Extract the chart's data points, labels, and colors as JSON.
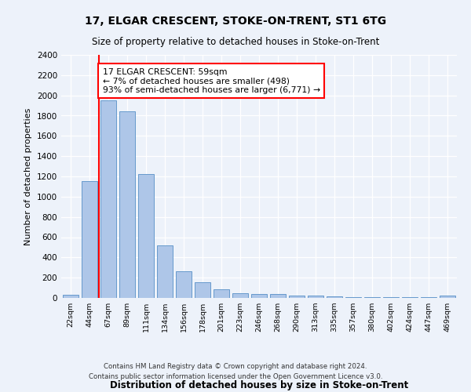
{
  "title1": "17, ELGAR CRESCENT, STOKE-ON-TRENT, ST1 6TG",
  "title2": "Size of property relative to detached houses in Stoke-on-Trent",
  "xlabel": "Distribution of detached houses by size in Stoke-on-Trent",
  "ylabel": "Number of detached properties",
  "categories": [
    "22sqm",
    "44sqm",
    "67sqm",
    "89sqm",
    "111sqm",
    "134sqm",
    "156sqm",
    "178sqm",
    "201sqm",
    "223sqm",
    "246sqm",
    "268sqm",
    "290sqm",
    "313sqm",
    "335sqm",
    "357sqm",
    "380sqm",
    "402sqm",
    "424sqm",
    "447sqm",
    "469sqm"
  ],
  "values": [
    30,
    1150,
    1950,
    1840,
    1220,
    520,
    265,
    155,
    85,
    45,
    40,
    35,
    20,
    20,
    15,
    10,
    10,
    10,
    5,
    5,
    20
  ],
  "bar_color": "#aec6e8",
  "bar_edge_color": "#6699cc",
  "vline_x": 1.5,
  "vline_color": "red",
  "annotation_text": "17 ELGAR CRESCENT: 59sqm\n← 7% of detached houses are smaller (498)\n93% of semi-detached houses are larger (6,771) →",
  "annotation_box_color": "white",
  "annotation_box_edge_color": "red",
  "ylim": [
    0,
    2400
  ],
  "yticks": [
    0,
    200,
    400,
    600,
    800,
    1000,
    1200,
    1400,
    1600,
    1800,
    2000,
    2200,
    2400
  ],
  "footnote1": "Contains HM Land Registry data © Crown copyright and database right 2024.",
  "footnote2": "Contains public sector information licensed under the Open Government Licence v3.0.",
  "bg_color": "#edf2fa",
  "plot_bg_color": "#edf2fa"
}
